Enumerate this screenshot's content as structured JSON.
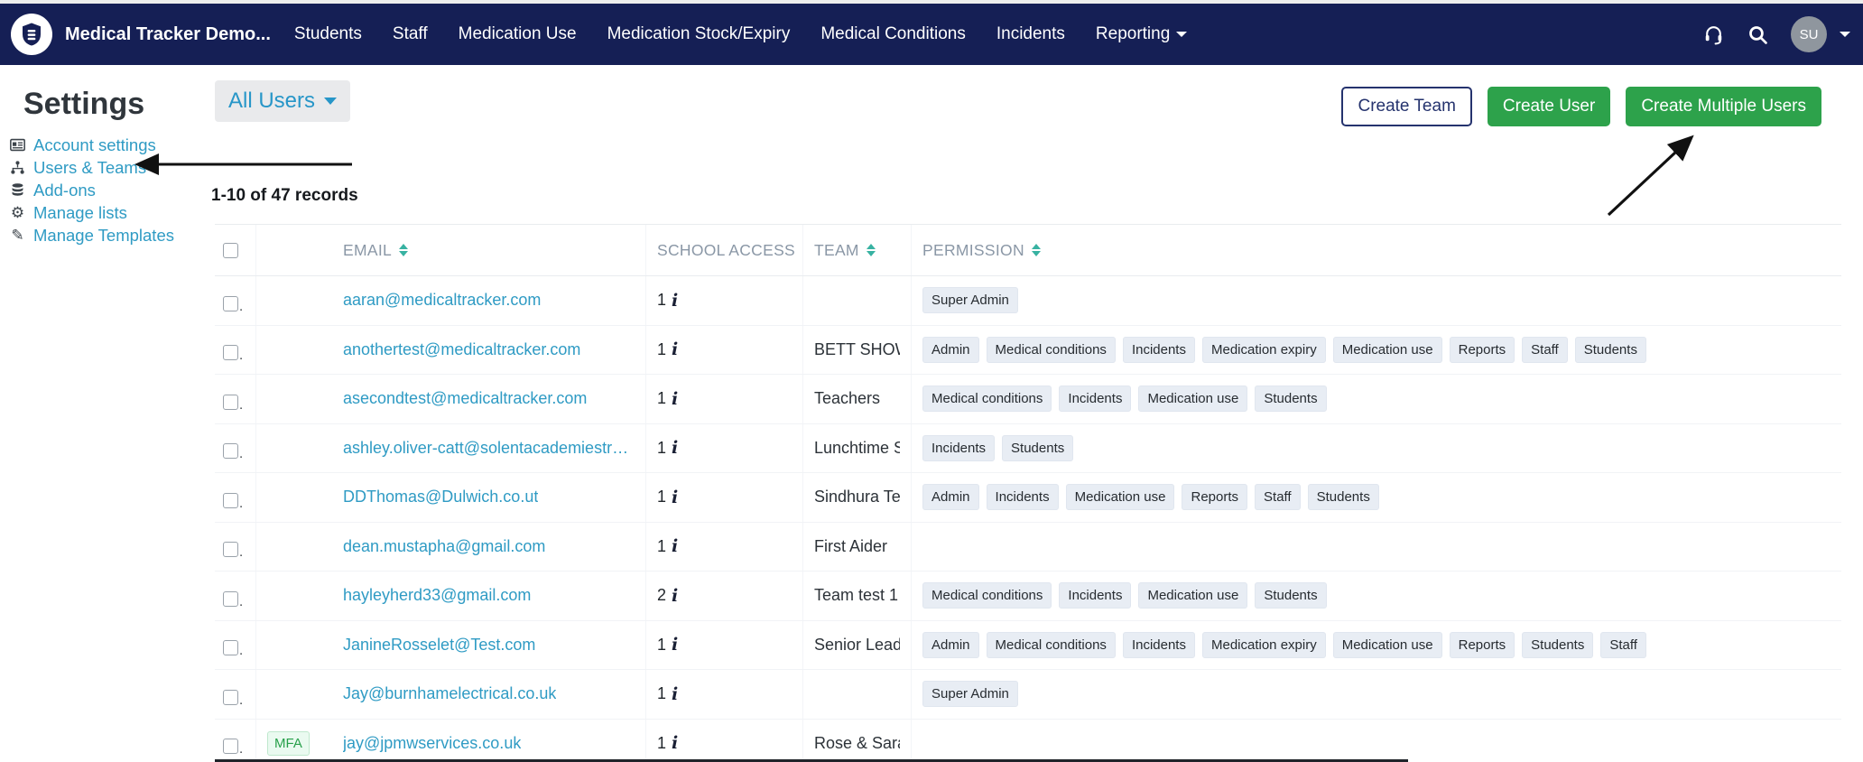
{
  "navbar": {
    "brand": "Medical Tracker Demo...",
    "items": [
      "Students",
      "Staff",
      "Medication Use",
      "Medication Stock/Expiry",
      "Medical Conditions",
      "Incidents"
    ],
    "dropdown_label": "Reporting",
    "user_initials": "SU",
    "icons": [
      "shield-logo-icon",
      "headset-icon",
      "search-icon",
      "chevron-down-icon"
    ]
  },
  "page": {
    "title": "Settings",
    "records_summary": "1-10 of 47 records"
  },
  "sidebar": {
    "items": [
      {
        "icon": "address-card-icon",
        "label": "Account settings"
      },
      {
        "icon": "sitemap-icon",
        "label": "Users & Teams"
      },
      {
        "icon": "database-icon",
        "label": "Add-ons"
      },
      {
        "icon": "gear-icon",
        "label": "Manage lists"
      },
      {
        "icon": "pencil-icon",
        "label": "Manage Templates"
      }
    ]
  },
  "filter": {
    "label": "All Users"
  },
  "actions": {
    "create_team": "Create Team",
    "create_user": "Create User",
    "create_multiple_users": "Create Multiple Users"
  },
  "table": {
    "checkbox_suffix": ".",
    "columns": [
      {
        "label": "EMAIL"
      },
      {
        "label": "SCHOOL ACCESS"
      },
      {
        "label": "TEAM"
      },
      {
        "label": "PERMISSION"
      }
    ],
    "rows": [
      {
        "email": "aaran@medicaltracker.com",
        "mfa": false,
        "school_access": "1",
        "team": "",
        "permissions": [
          "Super Admin"
        ]
      },
      {
        "email": "anothertest@medicaltracker.com",
        "mfa": false,
        "school_access": "1",
        "team": "BETT SHOW",
        "permissions": [
          "Admin",
          "Medical conditions",
          "Incidents",
          "Medication expiry",
          "Medication use",
          "Reports",
          "Staff",
          "Students"
        ]
      },
      {
        "email": "asecondtest@medicaltracker.com",
        "mfa": false,
        "school_access": "1",
        "team": "Teachers",
        "permissions": [
          "Medical conditions",
          "Incidents",
          "Medication use",
          "Students"
        ]
      },
      {
        "email": "ashley.oliver-catt@solentacademiestrust.in…",
        "mfa": false,
        "school_access": "1",
        "team": "Lunchtime Sup",
        "permissions": [
          "Incidents",
          "Students"
        ]
      },
      {
        "email": "DDThomas@Dulwich.co.ut",
        "mfa": false,
        "school_access": "1",
        "team": "Sindhura Test",
        "permissions": [
          "Admin",
          "Incidents",
          "Medication use",
          "Reports",
          "Staff",
          "Students"
        ]
      },
      {
        "email": "dean.mustapha@gmail.com",
        "mfa": false,
        "school_access": "1",
        "team": "First Aider",
        "permissions": []
      },
      {
        "email": "hayleyherd33@gmail.com",
        "mfa": false,
        "school_access": "2",
        "team": "Team test 1",
        "permissions": [
          "Medical conditions",
          "Incidents",
          "Medication use",
          "Students"
        ]
      },
      {
        "email": "JanineRosselet@Test.com",
        "mfa": false,
        "school_access": "1",
        "team": "Senior Leaders",
        "permissions": [
          "Admin",
          "Medical conditions",
          "Incidents",
          "Medication expiry",
          "Medication use",
          "Reports",
          "Students",
          "Staff"
        ]
      },
      {
        "email": "Jay@burnhamelectrical.co.uk",
        "mfa": false,
        "school_access": "1",
        "team": "",
        "permissions": [
          "Super Admin"
        ]
      },
      {
        "email": "jay@jpmwservices.co.uk",
        "mfa": true,
        "mfa_label": "MFA",
        "school_access": "1",
        "team": "Rose & Sara - T",
        "permissions": []
      }
    ]
  },
  "colors": {
    "navbar_bg": "#151f55",
    "accent_blue": "#2f9bc4",
    "button_green": "#2da24b",
    "outline_navy": "#25336e",
    "badge_bg": "#e8edf4",
    "sort_teal": "#38b2a2",
    "mfa_green": "#27a04a"
  }
}
